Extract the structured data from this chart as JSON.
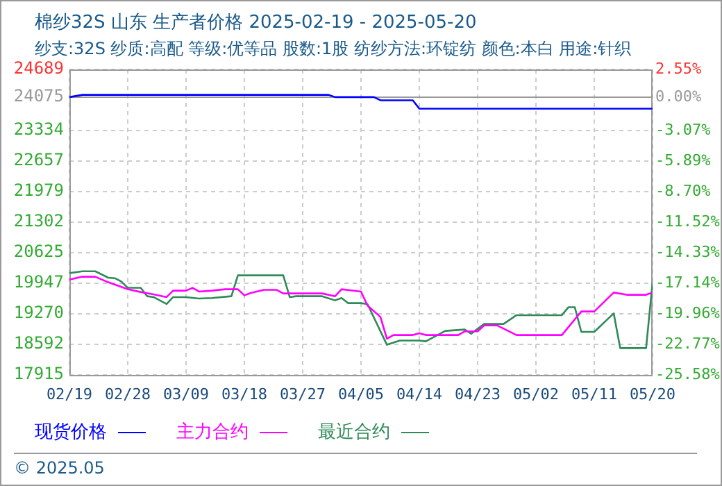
{
  "chart_data": {
    "type": "line",
    "title": "棉纱32S 山东 生产者价格 2025-02-19 - 2025-05-20",
    "subtitle": "纱支:32S 纱质:高配 等级:优等品 股数:1股 纺纱方法:环锭纺 颜色:本白 用途:针织",
    "series": [
      {
        "name": "现货价格",
        "color": "#0000ff",
        "x": [
          "2025-02-19",
          "2025-02-21",
          "2025-03-31",
          "2025-04-01",
          "2025-04-07",
          "2025-04-08",
          "2025-04-13",
          "2025-04-14",
          "2025-05-20"
        ],
        "values": [
          24075,
          24125,
          24125,
          24075,
          24075,
          24005,
          24005,
          23820,
          23820
        ]
      },
      {
        "name": "主力合约",
        "color": "#ff00ff",
        "x": [
          "2025-02-19",
          "2025-02-21",
          "2025-02-23",
          "2025-02-25",
          "2025-02-28",
          "2025-03-02",
          "2025-03-04",
          "2025-03-06",
          "2025-03-07",
          "2025-03-09",
          "2025-03-10",
          "2025-03-11",
          "2025-03-13",
          "2025-03-15",
          "2025-03-17",
          "2025-03-18",
          "2025-03-19",
          "2025-03-21",
          "2025-03-23",
          "2025-03-24",
          "2025-03-30",
          "2025-04-01",
          "2025-04-02",
          "2025-04-05",
          "2025-04-06",
          "2025-04-08",
          "2025-04-09",
          "2025-04-10",
          "2025-04-13",
          "2025-04-14",
          "2025-04-15",
          "2025-04-20",
          "2025-04-21",
          "2025-04-23",
          "2025-04-24",
          "2025-04-26",
          "2025-04-29",
          "2025-05-06",
          "2025-05-09",
          "2025-05-11",
          "2025-05-14",
          "2025-05-16",
          "2025-05-19",
          "2025-05-20"
        ],
        "values": [
          20030,
          20092,
          20092,
          19969,
          19815,
          19753,
          19700,
          19640,
          19784,
          19784,
          19846,
          19763,
          19784,
          19815,
          19815,
          19680,
          19732,
          19800,
          19800,
          19722,
          19722,
          19660,
          19815,
          19763,
          19455,
          19199,
          18716,
          18799,
          18799,
          18839,
          18799,
          18799,
          18880,
          18880,
          19013,
          19013,
          18799,
          18799,
          19322,
          19322,
          19741,
          19692,
          19692,
          19741
        ]
      },
      {
        "name": "最近合约",
        "color": "#2e8b57",
        "x": [
          "2025-02-19",
          "2025-02-21",
          "2025-02-23",
          "2025-02-25",
          "2025-02-26",
          "2025-02-27",
          "2025-02-28",
          "2025-03-02",
          "2025-03-03",
          "2025-03-04",
          "2025-03-06",
          "2025-03-07",
          "2025-03-09",
          "2025-03-11",
          "2025-03-13",
          "2025-03-16",
          "2025-03-17",
          "2025-03-24",
          "2025-03-25",
          "2025-03-26",
          "2025-03-30",
          "2025-04-01",
          "2025-04-02",
          "2025-04-03",
          "2025-04-05",
          "2025-04-06",
          "2025-04-09",
          "2025-04-11",
          "2025-04-14",
          "2025-04-15",
          "2025-04-18",
          "2025-04-21",
          "2025-04-22",
          "2025-04-24",
          "2025-04-27",
          "2025-04-29",
          "2025-05-06",
          "2025-05-07",
          "2025-05-08",
          "2025-05-09",
          "2025-05-11",
          "2025-05-14",
          "2025-05-15",
          "2025-05-19",
          "2025-05-20"
        ],
        "values": [
          20172,
          20213,
          20213,
          20070,
          20060,
          19988,
          19846,
          19846,
          19660,
          19640,
          19486,
          19640,
          19640,
          19609,
          19620,
          19660,
          20123,
          20123,
          19640,
          19660,
          19660,
          19568,
          19620,
          19507,
          19507,
          19486,
          18583,
          18676,
          18676,
          18660,
          18890,
          18921,
          18829,
          19045,
          19045,
          19240,
          19240,
          19415,
          19415,
          18870,
          18870,
          19280,
          18510,
          18510,
          19969
        ]
      }
    ],
    "xlim": [
      "2025-02-19",
      "2025-05-20"
    ],
    "xticks": [
      {
        "value": "2025-02-19",
        "label": "02/19"
      },
      {
        "value": "2025-02-28",
        "label": "02/28"
      },
      {
        "value": "2025-03-09",
        "label": "03/09"
      },
      {
        "value": "2025-03-18",
        "label": "03/18"
      },
      {
        "value": "2025-03-27",
        "label": "03/27"
      },
      {
        "value": "2025-04-05",
        "label": "04/05"
      },
      {
        "value": "2025-04-14",
        "label": "04/14"
      },
      {
        "value": "2025-04-23",
        "label": "04/23"
      },
      {
        "value": "2025-05-02",
        "label": "05/02"
      },
      {
        "value": "2025-05-11",
        "label": "05/11"
      },
      {
        "value": "2025-05-20",
        "label": "05/20"
      }
    ],
    "ylim": [
      17915,
      24689
    ],
    "yticks": [
      17915,
      18592,
      19270,
      19947,
      20625,
      21302,
      21979,
      22657,
      23334,
      24075,
      24689
    ],
    "y2lim": [
      -25.58,
      2.55
    ],
    "y2ticks": [
      {
        "value": -25.58,
        "label": "-25.58%"
      },
      {
        "value": -22.77,
        "label": "-22.77%"
      },
      {
        "value": -19.96,
        "label": "-19.96%"
      },
      {
        "value": -17.14,
        "label": "-17.14%"
      },
      {
        "value": -14.33,
        "label": "-14.33%"
      },
      {
        "value": -11.52,
        "label": "-11.52%"
      },
      {
        "value": -8.7,
        "label": "-8.70%"
      },
      {
        "value": -5.89,
        "label": "-5.89%"
      },
      {
        "value": -3.07,
        "label": "-3.07%"
      },
      {
        "value": 0,
        "label": "0.00%"
      },
      {
        "value": 2.55,
        "label": "2.55%"
      }
    ],
    "ref_lines": [
      {
        "axis": "y",
        "value": 24075,
        "color": "#999999"
      }
    ],
    "grid": true,
    "legend": "bottom",
    "annotations": [
      "© 2025.05"
    ]
  }
}
